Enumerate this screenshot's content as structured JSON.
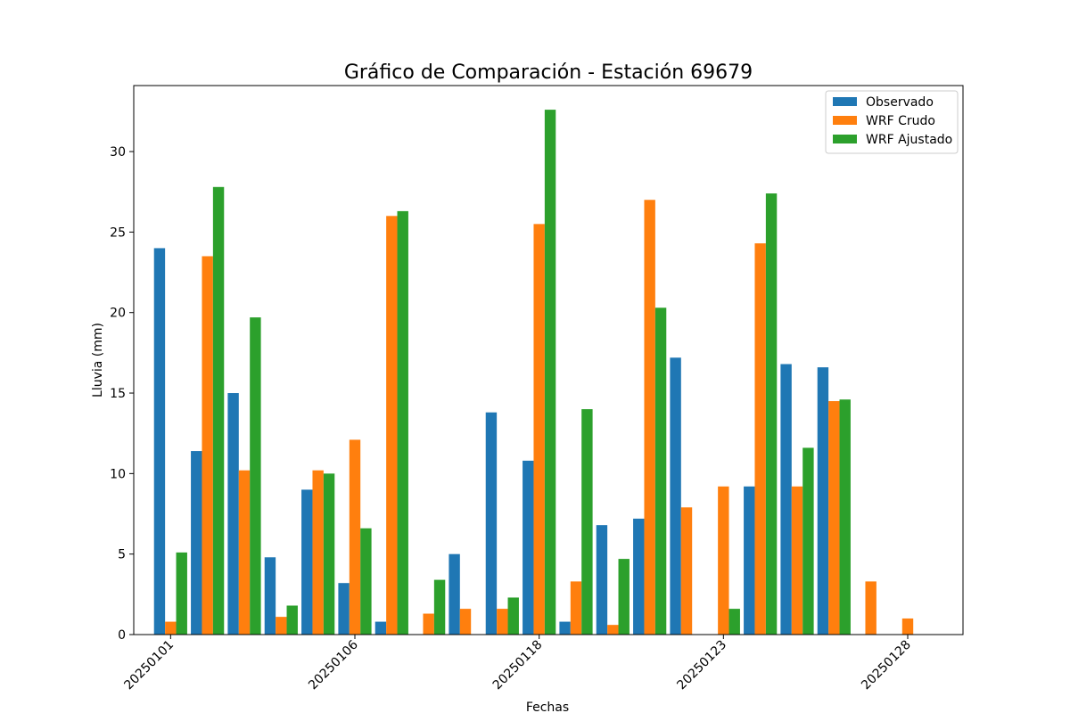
{
  "chart_data": {
    "type": "bar",
    "title": "Gráfico de Comparación - Estación 69679",
    "xlabel": "Fechas",
    "ylabel": "Lluvia (mm)",
    "ylim": [
      0,
      34.1
    ],
    "yticks": [
      0,
      5,
      10,
      15,
      20,
      25,
      30
    ],
    "xlim": [
      -1,
      21.5
    ],
    "xtick_positions": [
      0,
      5,
      10,
      15,
      20
    ],
    "xtick_labels": [
      "20250101",
      "20250106",
      "20250118",
      "20250123",
      "20250128"
    ],
    "grid": false,
    "legend_position": "top-right",
    "x": [
      0,
      1,
      2,
      3,
      4,
      5,
      6,
      7,
      8,
      9,
      10,
      11,
      12,
      13,
      14,
      15,
      16,
      17,
      18,
      19,
      20
    ],
    "series": [
      {
        "name": "Observado",
        "color": "#1f77b4",
        "values": [
          24.0,
          11.4,
          15.0,
          4.8,
          9.0,
          3.2,
          0.8,
          0.0,
          5.0,
          13.8,
          10.8,
          0.8,
          6.8,
          7.2,
          17.2,
          0.0,
          9.2,
          16.8,
          16.6,
          0.0,
          0.0
        ]
      },
      {
        "name": "WRF Crudo",
        "color": "#ff7f0e",
        "values": [
          0.8,
          23.5,
          10.2,
          1.1,
          10.2,
          12.1,
          26.0,
          1.3,
          1.6,
          1.6,
          25.5,
          3.3,
          0.6,
          27.0,
          7.9,
          9.2,
          24.3,
          9.2,
          14.5,
          3.3,
          1.0
        ]
      },
      {
        "name": "WRF Ajustado",
        "color": "#2ca02c",
        "values": [
          5.1,
          27.8,
          19.7,
          1.8,
          10.0,
          6.6,
          26.3,
          3.4,
          0.0,
          2.3,
          32.6,
          14.0,
          4.7,
          20.3,
          0.0,
          1.6,
          27.4,
          11.6,
          14.6,
          0.0,
          0.0
        ]
      }
    ]
  }
}
